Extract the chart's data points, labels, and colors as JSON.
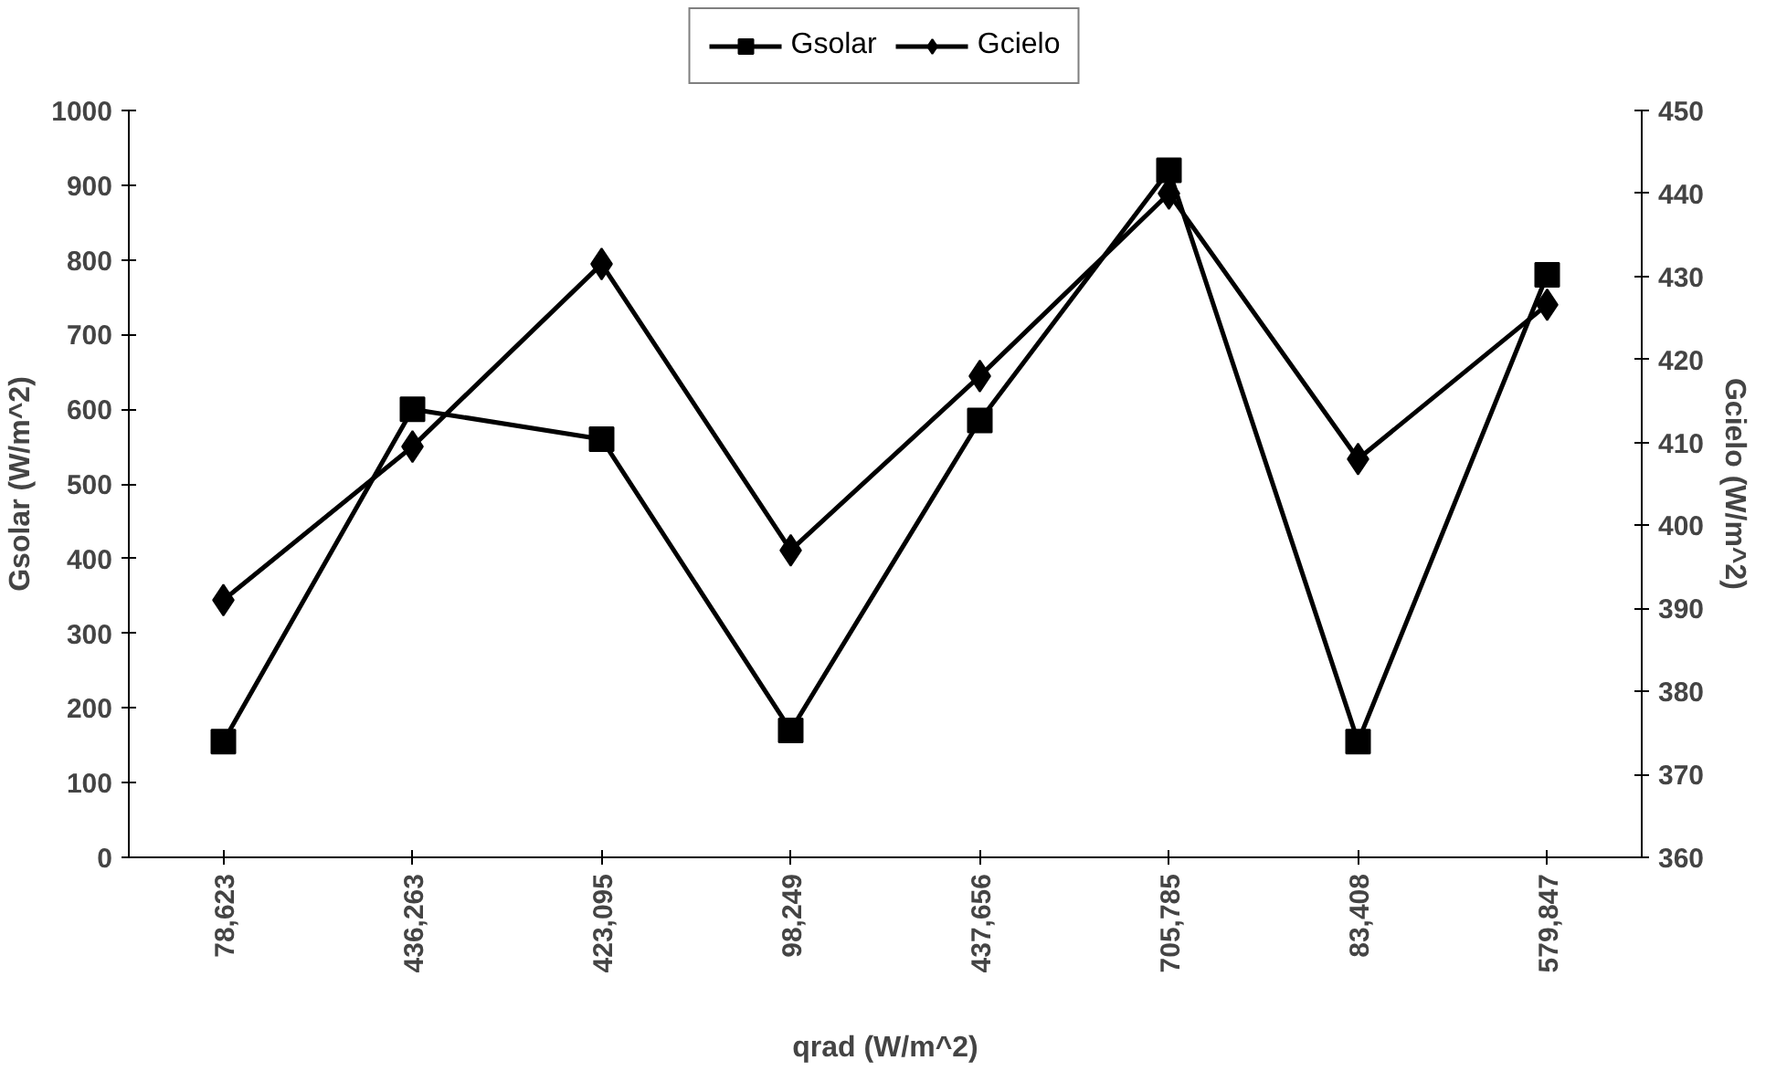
{
  "chart_data": {
    "type": "line",
    "xlabel": "qrad (W/m^2)",
    "ylabel": "Gsolar (W/m^2)",
    "y2label": "Gcielo (W/m^2)",
    "categories": [
      "78,623",
      "436,263",
      "423,095",
      "98,249",
      "437,656",
      "705,785",
      "83,408",
      "579,847"
    ],
    "series": [
      {
        "name": "Gsolar",
        "color": "#000000",
        "marker": "square",
        "values": [
          155,
          600,
          560,
          170,
          585,
          920,
          155,
          780
        ]
      },
      {
        "name": "Gcielo",
        "color": "#000000",
        "marker": "diamond",
        "axis": "y2",
        "values": [
          391,
          409.5,
          431.5,
          397,
          418,
          440,
          408,
          426.6
        ]
      }
    ],
    "ylim": [
      0,
      1000
    ],
    "yticks": [
      0,
      100,
      200,
      300,
      400,
      500,
      600,
      700,
      800,
      900,
      1000
    ],
    "y2lim": [
      360,
      450
    ],
    "y2ticks": [
      360,
      370,
      380,
      390,
      400,
      410,
      420,
      430,
      440,
      450
    ],
    "grid": false,
    "legend": "top",
    "line_style": "solid"
  }
}
